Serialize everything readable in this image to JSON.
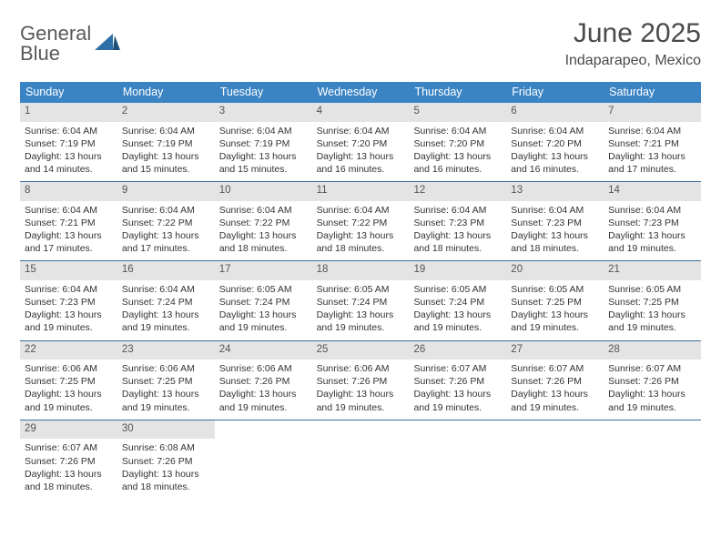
{
  "brand": {
    "word1": "General",
    "word2": "Blue"
  },
  "title": "June 2025",
  "location": "Indaparapeo, Mexico",
  "colors": {
    "header_bg": "#3b84c4",
    "header_text": "#ffffff",
    "daynum_bg": "#e4e4e4",
    "border": "#3b6f9b",
    "brand_blue": "#2f6fa8",
    "text": "#333333",
    "background": "#ffffff"
  },
  "weekdays": [
    "Sunday",
    "Monday",
    "Tuesday",
    "Wednesday",
    "Thursday",
    "Friday",
    "Saturday"
  ],
  "weeks": [
    [
      {
        "n": "1",
        "sr": "Sunrise: 6:04 AM",
        "ss": "Sunset: 7:19 PM",
        "d1": "Daylight: 13 hours",
        "d2": "and 14 minutes."
      },
      {
        "n": "2",
        "sr": "Sunrise: 6:04 AM",
        "ss": "Sunset: 7:19 PM",
        "d1": "Daylight: 13 hours",
        "d2": "and 15 minutes."
      },
      {
        "n": "3",
        "sr": "Sunrise: 6:04 AM",
        "ss": "Sunset: 7:19 PM",
        "d1": "Daylight: 13 hours",
        "d2": "and 15 minutes."
      },
      {
        "n": "4",
        "sr": "Sunrise: 6:04 AM",
        "ss": "Sunset: 7:20 PM",
        "d1": "Daylight: 13 hours",
        "d2": "and 16 minutes."
      },
      {
        "n": "5",
        "sr": "Sunrise: 6:04 AM",
        "ss": "Sunset: 7:20 PM",
        "d1": "Daylight: 13 hours",
        "d2": "and 16 minutes."
      },
      {
        "n": "6",
        "sr": "Sunrise: 6:04 AM",
        "ss": "Sunset: 7:20 PM",
        "d1": "Daylight: 13 hours",
        "d2": "and 16 minutes."
      },
      {
        "n": "7",
        "sr": "Sunrise: 6:04 AM",
        "ss": "Sunset: 7:21 PM",
        "d1": "Daylight: 13 hours",
        "d2": "and 17 minutes."
      }
    ],
    [
      {
        "n": "8",
        "sr": "Sunrise: 6:04 AM",
        "ss": "Sunset: 7:21 PM",
        "d1": "Daylight: 13 hours",
        "d2": "and 17 minutes."
      },
      {
        "n": "9",
        "sr": "Sunrise: 6:04 AM",
        "ss": "Sunset: 7:22 PM",
        "d1": "Daylight: 13 hours",
        "d2": "and 17 minutes."
      },
      {
        "n": "10",
        "sr": "Sunrise: 6:04 AM",
        "ss": "Sunset: 7:22 PM",
        "d1": "Daylight: 13 hours",
        "d2": "and 18 minutes."
      },
      {
        "n": "11",
        "sr": "Sunrise: 6:04 AM",
        "ss": "Sunset: 7:22 PM",
        "d1": "Daylight: 13 hours",
        "d2": "and 18 minutes."
      },
      {
        "n": "12",
        "sr": "Sunrise: 6:04 AM",
        "ss": "Sunset: 7:23 PM",
        "d1": "Daylight: 13 hours",
        "d2": "and 18 minutes."
      },
      {
        "n": "13",
        "sr": "Sunrise: 6:04 AM",
        "ss": "Sunset: 7:23 PM",
        "d1": "Daylight: 13 hours",
        "d2": "and 18 minutes."
      },
      {
        "n": "14",
        "sr": "Sunrise: 6:04 AM",
        "ss": "Sunset: 7:23 PM",
        "d1": "Daylight: 13 hours",
        "d2": "and 19 minutes."
      }
    ],
    [
      {
        "n": "15",
        "sr": "Sunrise: 6:04 AM",
        "ss": "Sunset: 7:23 PM",
        "d1": "Daylight: 13 hours",
        "d2": "and 19 minutes."
      },
      {
        "n": "16",
        "sr": "Sunrise: 6:04 AM",
        "ss": "Sunset: 7:24 PM",
        "d1": "Daylight: 13 hours",
        "d2": "and 19 minutes."
      },
      {
        "n": "17",
        "sr": "Sunrise: 6:05 AM",
        "ss": "Sunset: 7:24 PM",
        "d1": "Daylight: 13 hours",
        "d2": "and 19 minutes."
      },
      {
        "n": "18",
        "sr": "Sunrise: 6:05 AM",
        "ss": "Sunset: 7:24 PM",
        "d1": "Daylight: 13 hours",
        "d2": "and 19 minutes."
      },
      {
        "n": "19",
        "sr": "Sunrise: 6:05 AM",
        "ss": "Sunset: 7:24 PM",
        "d1": "Daylight: 13 hours",
        "d2": "and 19 minutes."
      },
      {
        "n": "20",
        "sr": "Sunrise: 6:05 AM",
        "ss": "Sunset: 7:25 PM",
        "d1": "Daylight: 13 hours",
        "d2": "and 19 minutes."
      },
      {
        "n": "21",
        "sr": "Sunrise: 6:05 AM",
        "ss": "Sunset: 7:25 PM",
        "d1": "Daylight: 13 hours",
        "d2": "and 19 minutes."
      }
    ],
    [
      {
        "n": "22",
        "sr": "Sunrise: 6:06 AM",
        "ss": "Sunset: 7:25 PM",
        "d1": "Daylight: 13 hours",
        "d2": "and 19 minutes."
      },
      {
        "n": "23",
        "sr": "Sunrise: 6:06 AM",
        "ss": "Sunset: 7:25 PM",
        "d1": "Daylight: 13 hours",
        "d2": "and 19 minutes."
      },
      {
        "n": "24",
        "sr": "Sunrise: 6:06 AM",
        "ss": "Sunset: 7:26 PM",
        "d1": "Daylight: 13 hours",
        "d2": "and 19 minutes."
      },
      {
        "n": "25",
        "sr": "Sunrise: 6:06 AM",
        "ss": "Sunset: 7:26 PM",
        "d1": "Daylight: 13 hours",
        "d2": "and 19 minutes."
      },
      {
        "n": "26",
        "sr": "Sunrise: 6:07 AM",
        "ss": "Sunset: 7:26 PM",
        "d1": "Daylight: 13 hours",
        "d2": "and 19 minutes."
      },
      {
        "n": "27",
        "sr": "Sunrise: 6:07 AM",
        "ss": "Sunset: 7:26 PM",
        "d1": "Daylight: 13 hours",
        "d2": "and 19 minutes."
      },
      {
        "n": "28",
        "sr": "Sunrise: 6:07 AM",
        "ss": "Sunset: 7:26 PM",
        "d1": "Daylight: 13 hours",
        "d2": "and 19 minutes."
      }
    ],
    [
      {
        "n": "29",
        "sr": "Sunrise: 6:07 AM",
        "ss": "Sunset: 7:26 PM",
        "d1": "Daylight: 13 hours",
        "d2": "and 18 minutes."
      },
      {
        "n": "30",
        "sr": "Sunrise: 6:08 AM",
        "ss": "Sunset: 7:26 PM",
        "d1": "Daylight: 13 hours",
        "d2": "and 18 minutes."
      },
      null,
      null,
      null,
      null,
      null
    ]
  ]
}
